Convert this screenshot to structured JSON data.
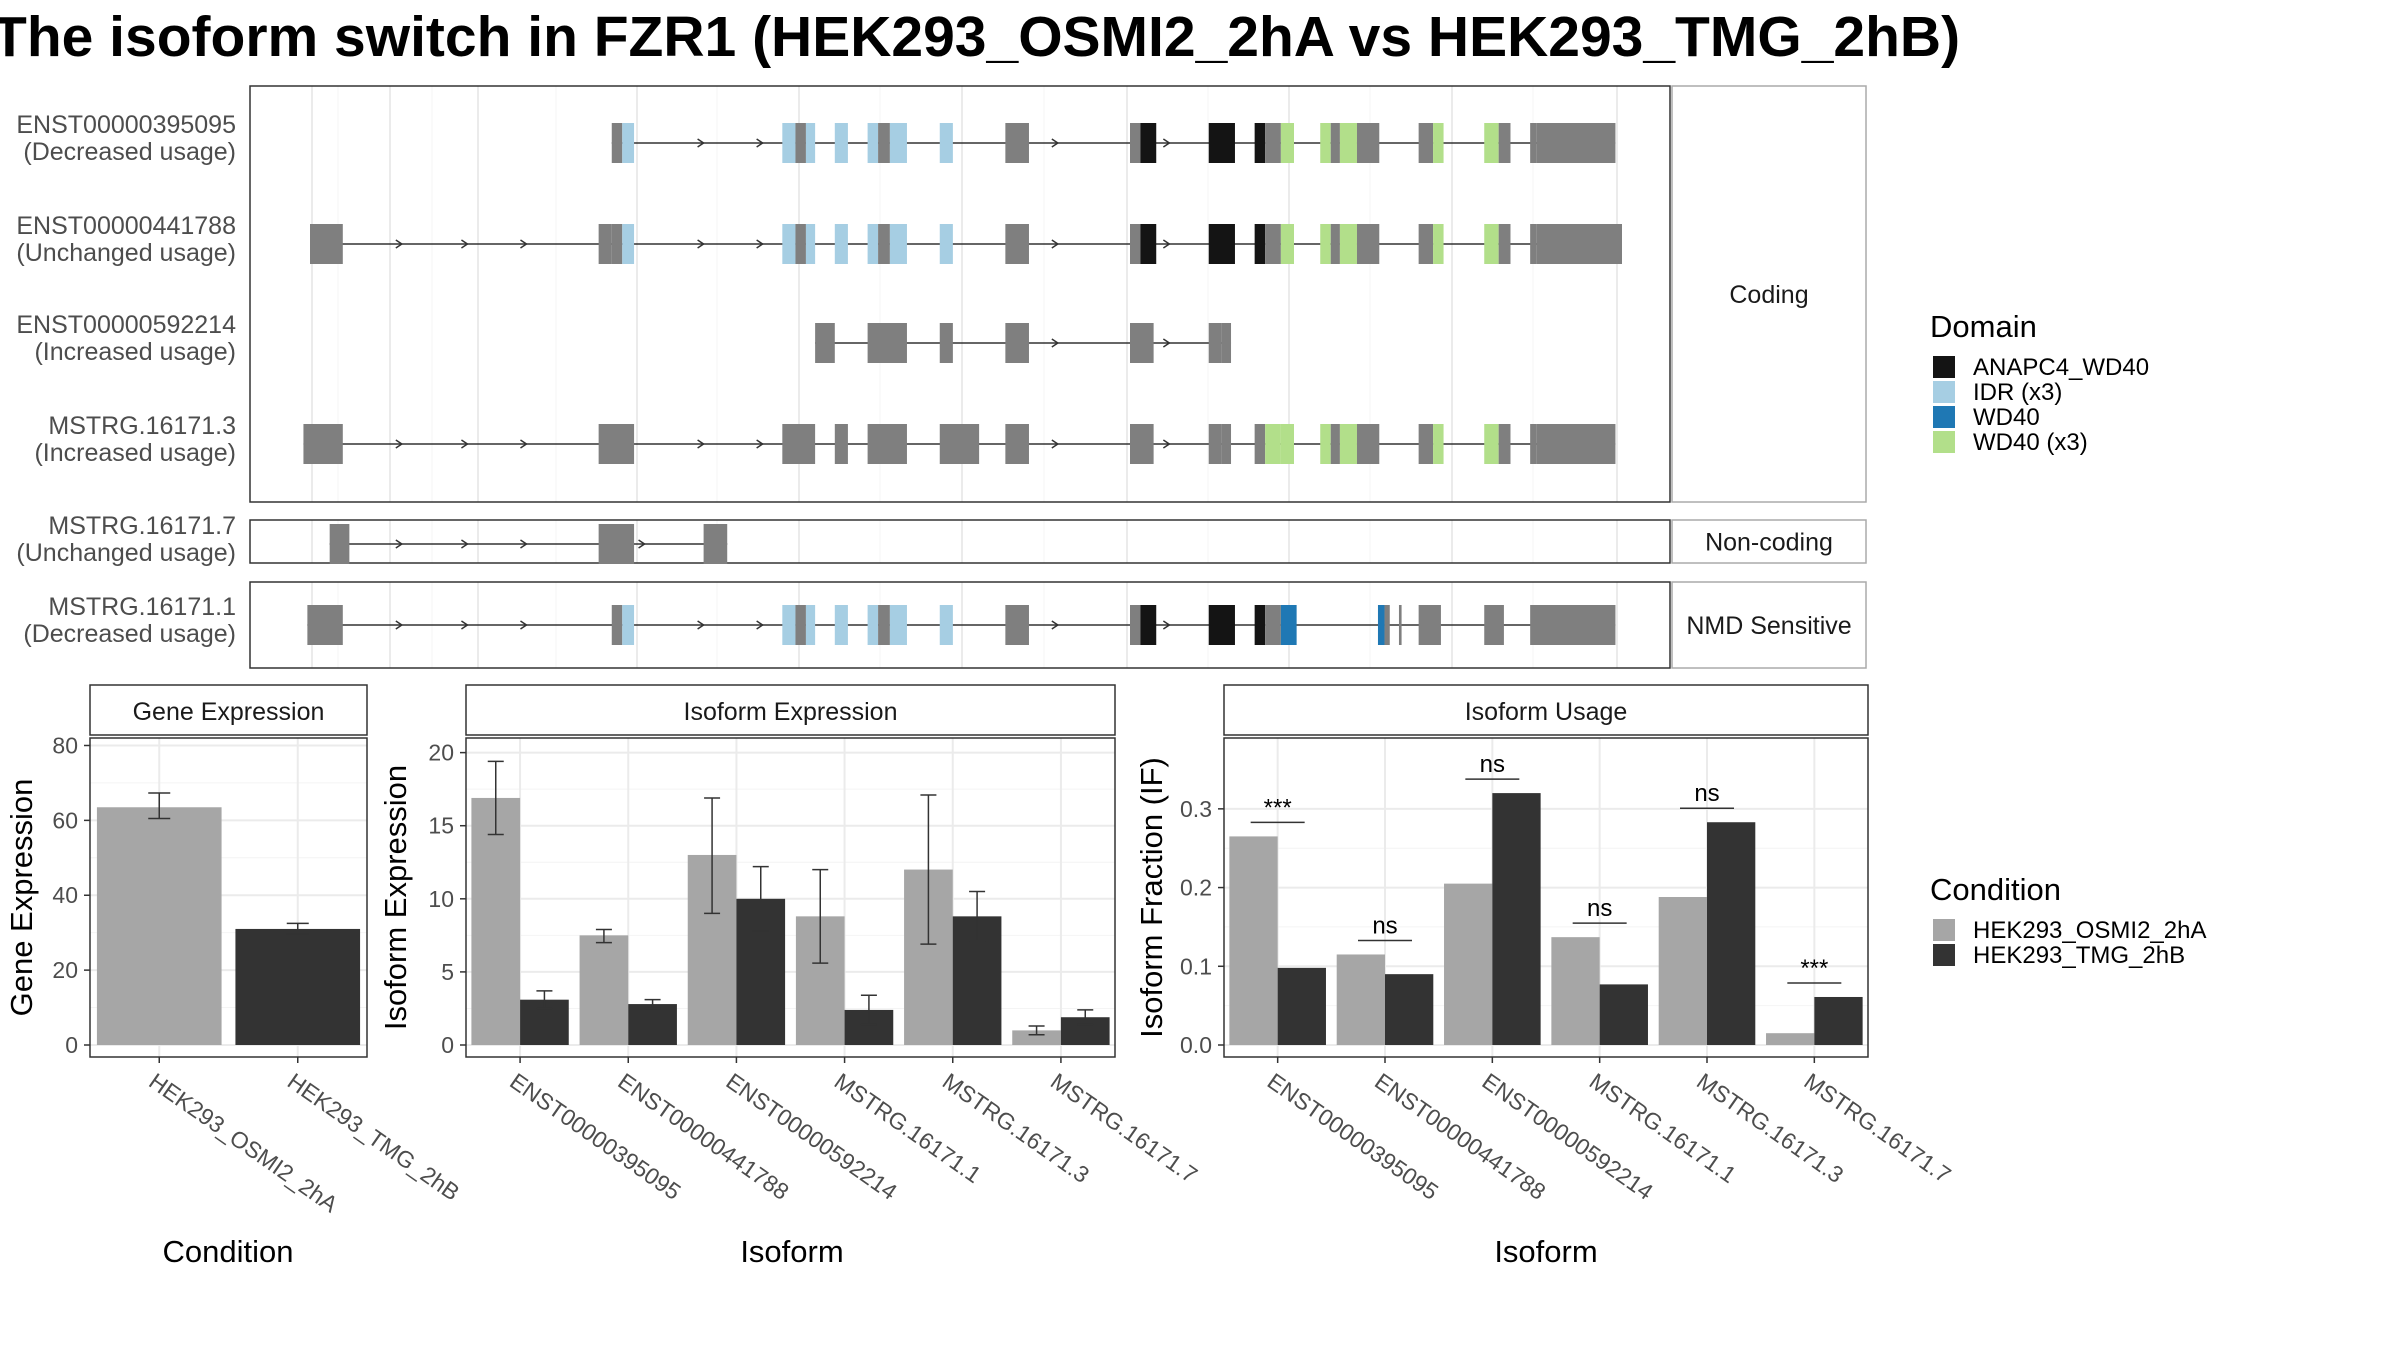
{
  "title": "The isoform switch in FZR1 (HEK293_OSMI2_2hA vs HEK293_TMG_2hB)",
  "colors": {
    "condition_a": "#a6a6a6",
    "condition_b": "#333333",
    "exon": "#7f7f7f",
    "ANAPC4_WD40": "#141414",
    "IDR": "#a6cee3",
    "WD40": "#1f78b4",
    "WD40_x3": "#b2df8a",
    "strip_fill": "#ffffff",
    "panel_border": "#333333",
    "grid": "#ebebeb"
  },
  "structure": {
    "facets": [
      {
        "label": "Coding",
        "rows": 4
      },
      {
        "label": "Non-coding",
        "rows": 1
      },
      {
        "label": "NMD Sensitive",
        "rows": 1
      }
    ],
    "transcripts": [
      {
        "id": "ENST00000395095",
        "usage": "(Decreased usage)",
        "facet": "Coding",
        "exons": [
          [
            0.23,
            0.238,
            "n"
          ],
          [
            0.238,
            0.247,
            "IDR"
          ],
          [
            0.36,
            0.37,
            "IDR"
          ],
          [
            0.37,
            0.378,
            "n"
          ],
          [
            0.378,
            0.385,
            "IDR"
          ],
          [
            0.4,
            0.41,
            "IDR"
          ],
          [
            0.425,
            0.433,
            "IDR"
          ],
          [
            0.433,
            0.442,
            "n"
          ],
          [
            0.442,
            0.455,
            "IDR"
          ],
          [
            0.48,
            0.49,
            "IDR"
          ],
          [
            0.53,
            0.548,
            "n"
          ],
          [
            0.625,
            0.633,
            "n"
          ],
          [
            0.633,
            0.645,
            "ANAPC4_WD40"
          ],
          [
            0.685,
            0.705,
            "ANAPC4_WD40"
          ],
          [
            0.72,
            0.728,
            "ANAPC4_WD40"
          ],
          [
            0.728,
            0.74,
            "n"
          ],
          [
            0.74,
            0.75,
            "WD40_x3"
          ],
          [
            0.77,
            0.778,
            "WD40_x3"
          ],
          [
            0.778,
            0.785,
            "n"
          ],
          [
            0.785,
            0.798,
            "WD40_x3"
          ],
          [
            0.798,
            0.815,
            "n"
          ],
          [
            0.845,
            0.856,
            "n"
          ],
          [
            0.856,
            0.864,
            "WD40_x3"
          ],
          [
            0.895,
            0.906,
            "WD40_x3"
          ],
          [
            0.906,
            0.915,
            "n"
          ],
          [
            0.93,
            0.935,
            "n"
          ],
          [
            0.935,
            0.995,
            "n"
          ]
        ],
        "arrows": [
          0.3,
          0.345,
          0.57,
          0.655
        ]
      },
      {
        "id": "ENST00000441788",
        "usage": "(Unchanged usage)",
        "facet": "Coding",
        "exons": [
          [
            0.0,
            0.025,
            "n"
          ],
          [
            0.22,
            0.23,
            "n"
          ],
          [
            0.23,
            0.238,
            "n"
          ],
          [
            0.238,
            0.247,
            "IDR"
          ],
          [
            0.36,
            0.37,
            "IDR"
          ],
          [
            0.37,
            0.378,
            "n"
          ],
          [
            0.378,
            0.385,
            "IDR"
          ],
          [
            0.4,
            0.41,
            "IDR"
          ],
          [
            0.425,
            0.433,
            "IDR"
          ],
          [
            0.433,
            0.442,
            "n"
          ],
          [
            0.442,
            0.455,
            "IDR"
          ],
          [
            0.48,
            0.49,
            "IDR"
          ],
          [
            0.53,
            0.548,
            "n"
          ],
          [
            0.625,
            0.633,
            "n"
          ],
          [
            0.633,
            0.645,
            "ANAPC4_WD40"
          ],
          [
            0.685,
            0.705,
            "ANAPC4_WD40"
          ],
          [
            0.72,
            0.728,
            "ANAPC4_WD40"
          ],
          [
            0.728,
            0.74,
            "n"
          ],
          [
            0.74,
            0.75,
            "WD40_x3"
          ],
          [
            0.77,
            0.778,
            "WD40_x3"
          ],
          [
            0.778,
            0.785,
            "n"
          ],
          [
            0.785,
            0.798,
            "WD40_x3"
          ],
          [
            0.798,
            0.815,
            "n"
          ],
          [
            0.845,
            0.856,
            "n"
          ],
          [
            0.856,
            0.864,
            "WD40_x3"
          ],
          [
            0.895,
            0.906,
            "WD40_x3"
          ],
          [
            0.906,
            0.915,
            "n"
          ],
          [
            0.93,
            0.935,
            "n"
          ],
          [
            0.935,
            1.0,
            "n"
          ]
        ],
        "arrows": [
          0.07,
          0.12,
          0.165,
          0.3,
          0.345,
          0.57,
          0.655
        ]
      },
      {
        "id": "ENST00000592214",
        "usage": "(Increased usage)",
        "facet": "Coding",
        "exons": [
          [
            0.385,
            0.4,
            "n"
          ],
          [
            0.425,
            0.455,
            "n"
          ],
          [
            0.48,
            0.49,
            "n"
          ],
          [
            0.53,
            0.548,
            "n"
          ],
          [
            0.625,
            0.643,
            "n"
          ],
          [
            0.685,
            0.695,
            "n"
          ],
          [
            0.695,
            0.702,
            "n"
          ]
        ],
        "arrows": [
          0.57,
          0.655
        ]
      },
      {
        "id": "MSTRG.16171.3",
        "usage": "(Increased usage)",
        "facet": "Coding",
        "exons": [
          [
            -0.005,
            0.025,
            "n"
          ],
          [
            0.22,
            0.247,
            "n"
          ],
          [
            0.36,
            0.385,
            "n"
          ],
          [
            0.4,
            0.41,
            "n"
          ],
          [
            0.425,
            0.455,
            "n"
          ],
          [
            0.48,
            0.51,
            "n"
          ],
          [
            0.53,
            0.548,
            "n"
          ],
          [
            0.625,
            0.643,
            "n"
          ],
          [
            0.685,
            0.695,
            "n"
          ],
          [
            0.695,
            0.702,
            "n"
          ],
          [
            0.72,
            0.728,
            "n"
          ],
          [
            0.728,
            0.74,
            "WD40_x3"
          ],
          [
            0.74,
            0.75,
            "WD40_x3"
          ],
          [
            0.77,
            0.778,
            "WD40_x3"
          ],
          [
            0.778,
            0.785,
            "n"
          ],
          [
            0.785,
            0.798,
            "WD40_x3"
          ],
          [
            0.798,
            0.815,
            "n"
          ],
          [
            0.845,
            0.856,
            "n"
          ],
          [
            0.856,
            0.864,
            "WD40_x3"
          ],
          [
            0.895,
            0.906,
            "WD40_x3"
          ],
          [
            0.906,
            0.915,
            "n"
          ],
          [
            0.93,
            0.935,
            "n"
          ],
          [
            0.935,
            0.995,
            "n"
          ]
        ],
        "arrows": [
          0.07,
          0.12,
          0.165,
          0.3,
          0.345,
          0.57,
          0.655
        ]
      },
      {
        "id": "MSTRG.16171.7",
        "usage": "(Unchanged usage)",
        "facet": "Non-coding",
        "exons": [
          [
            0.015,
            0.03,
            "n"
          ],
          [
            0.22,
            0.247,
            "n"
          ],
          [
            0.3,
            0.318,
            "n"
          ]
        ],
        "arrows": [
          0.07,
          0.12,
          0.165,
          0.255
        ]
      },
      {
        "id": "MSTRG.16171.1",
        "usage": "(Decreased usage)",
        "facet": "NMD Sensitive",
        "exons": [
          [
            -0.002,
            0.025,
            "n"
          ],
          [
            0.23,
            0.238,
            "n"
          ],
          [
            0.238,
            0.247,
            "IDR"
          ],
          [
            0.36,
            0.37,
            "IDR"
          ],
          [
            0.37,
            0.378,
            "n"
          ],
          [
            0.378,
            0.385,
            "IDR"
          ],
          [
            0.4,
            0.41,
            "IDR"
          ],
          [
            0.425,
            0.433,
            "IDR"
          ],
          [
            0.433,
            0.442,
            "n"
          ],
          [
            0.442,
            0.455,
            "IDR"
          ],
          [
            0.48,
            0.49,
            "IDR"
          ],
          [
            0.53,
            0.548,
            "n"
          ],
          [
            0.625,
            0.633,
            "n"
          ],
          [
            0.633,
            0.645,
            "ANAPC4_WD40"
          ],
          [
            0.685,
            0.705,
            "ANAPC4_WD40"
          ],
          [
            0.72,
            0.728,
            "ANAPC4_WD40"
          ],
          [
            0.728,
            0.74,
            "n"
          ],
          [
            0.74,
            0.752,
            "WD40"
          ],
          [
            0.814,
            0.819,
            "WD40"
          ],
          [
            0.819,
            0.823,
            "n"
          ],
          [
            0.83,
            0.832,
            "n"
          ],
          [
            0.845,
            0.862,
            "n"
          ],
          [
            0.895,
            0.91,
            "n"
          ],
          [
            0.93,
            0.995,
            "n"
          ]
        ],
        "arrows": [
          0.07,
          0.12,
          0.165,
          0.3,
          0.345,
          0.57,
          0.655
        ]
      }
    ]
  },
  "legend_domain": {
    "title": "Domain",
    "items": [
      {
        "label": "ANAPC4_WD40",
        "color": "#141414"
      },
      {
        "label": "IDR (x3)",
        "color": "#a6cee3"
      },
      {
        "label": "WD40",
        "color": "#1f78b4"
      },
      {
        "label": "WD40 (x3)",
        "color": "#b2df8a"
      }
    ]
  },
  "legend_condition": {
    "title": "Condition",
    "items": [
      {
        "label": "HEK293_OSMI2_2hA",
        "color": "#a6a6a6"
      },
      {
        "label": "HEK293_TMG_2hB",
        "color": "#333333"
      }
    ]
  },
  "chart_data": [
    {
      "type": "bar",
      "panel_title": "Gene Expression",
      "xlabel": "Condition",
      "ylabel": "Gene Expression",
      "ylim": [
        0,
        82
      ],
      "yticks": [
        0,
        20,
        40,
        60,
        80
      ],
      "categories": [
        "HEK293_OSMI2_2hA",
        "HEK293_TMG_2hB"
      ],
      "values": [
        63.5,
        31
      ],
      "errors": [
        [
          60.5,
          67.3
        ],
        [
          29.6,
          32.5
        ]
      ]
    },
    {
      "type": "bar",
      "panel_title": "Isoform Expression",
      "xlabel": "Isoform",
      "ylabel": "Isoform Expression",
      "ylim": [
        0,
        21
      ],
      "yticks": [
        0,
        5,
        10,
        15,
        20
      ],
      "categories": [
        "ENST00000395095",
        "ENST00000441788",
        "ENST00000592214",
        "MSTRG.16171.1",
        "MSTRG.16171.3",
        "MSTRG.16171.7"
      ],
      "series": [
        {
          "name": "HEK293_OSMI2_2hA",
          "values": [
            16.9,
            7.5,
            13.0,
            8.8,
            12.0,
            1.0
          ],
          "errors": [
            [
              14.4,
              19.4
            ],
            [
              7.0,
              7.9
            ],
            [
              9.0,
              16.9
            ],
            [
              5.6,
              12.0
            ],
            [
              6.9,
              17.1
            ],
            [
              0.7,
              1.3
            ]
          ]
        },
        {
          "name": "HEK293_TMG_2hB",
          "values": [
            3.1,
            2.8,
            10.0,
            2.4,
            8.8,
            1.9
          ],
          "errors": [
            [
              2.5,
              3.7
            ],
            [
              2.5,
              3.1
            ],
            [
              7.8,
              12.2
            ],
            [
              1.4,
              3.4
            ],
            [
              7.1,
              10.5
            ],
            [
              1.4,
              2.4
            ]
          ]
        }
      ]
    },
    {
      "type": "bar",
      "panel_title": "Isoform Usage",
      "xlabel": "Isoform",
      "ylabel": "Isoform Fraction (IF)",
      "ylim": [
        0,
        0.39
      ],
      "yticks": [
        0.0,
        0.1,
        0.2,
        0.3
      ],
      "categories": [
        "ENST00000395095",
        "ENST00000441788",
        "ENST00000592214",
        "MSTRG.16171.1",
        "MSTRG.16171.3",
        "MSTRG.16171.7"
      ],
      "series": [
        {
          "name": "HEK293_OSMI2_2hA",
          "values": [
            0.265,
            0.115,
            0.205,
            0.137,
            0.188,
            0.015
          ]
        },
        {
          "name": "HEK293_TMG_2hB",
          "values": [
            0.098,
            0.09,
            0.32,
            0.077,
            0.283,
            0.061
          ]
        }
      ],
      "annotations": [
        "***",
        "ns",
        "ns",
        "ns",
        "ns",
        "***"
      ]
    }
  ]
}
